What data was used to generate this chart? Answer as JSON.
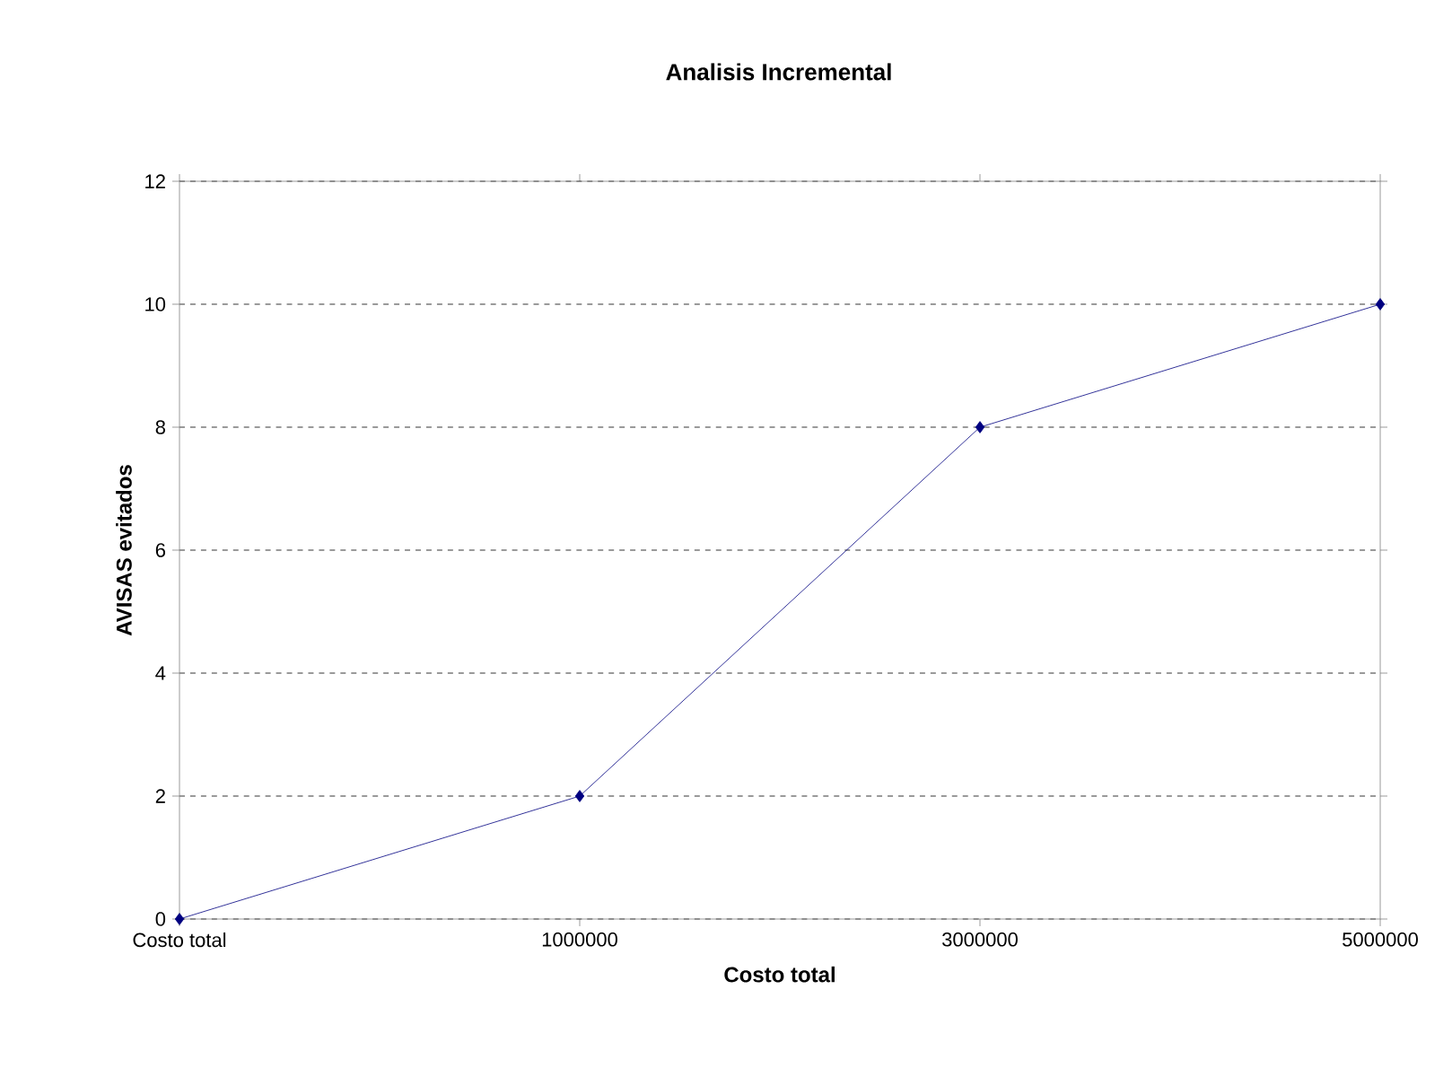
{
  "chart_data": {
    "type": "line",
    "title": "Analisis Incremental",
    "xlabel": "Costo total",
    "ylabel": "AVISAS evitados",
    "categories": [
      "Costo total",
      "1000000",
      "3000000",
      "5000000"
    ],
    "series": [
      {
        "color": "#000080",
        "values": [
          0,
          2,
          8,
          10
        ]
      }
    ],
    "ylim": [
      0,
      12
    ],
    "yticks": [
      0,
      2,
      4,
      6,
      8,
      10,
      12
    ],
    "grid": "y",
    "marker": "diamond",
    "line_style": "solid"
  }
}
